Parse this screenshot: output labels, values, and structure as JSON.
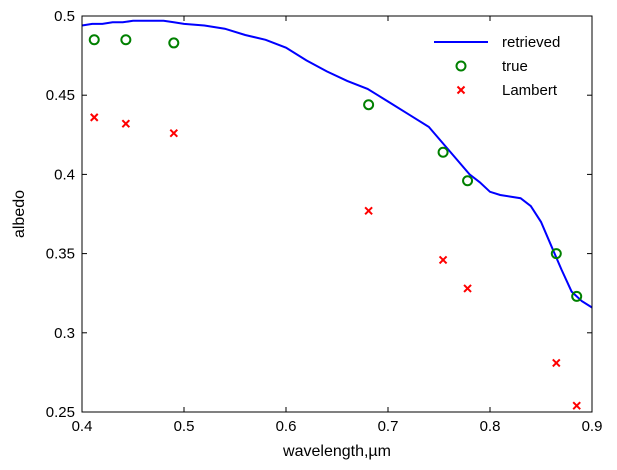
{
  "chart_data": {
    "type": "line",
    "xlabel": "wavelength,µm",
    "ylabel": "albedo",
    "xlim": [
      0.4,
      0.9
    ],
    "ylim": [
      0.25,
      0.5
    ],
    "xticks": [
      "0.4",
      "0.5",
      "0.6",
      "0.7",
      "0.8",
      "0.9"
    ],
    "yticks": [
      "0.25",
      "0.3",
      "0.35",
      "0.4",
      "0.45",
      "0.5"
    ],
    "grid": false,
    "legend_position": "top-right",
    "series": [
      {
        "name": "retrieved",
        "style": "line",
        "color": "#0000ff",
        "x": [
          0.4,
          0.41,
          0.42,
          0.43,
          0.44,
          0.45,
          0.46,
          0.47,
          0.48,
          0.49,
          0.5,
          0.52,
          0.54,
          0.56,
          0.58,
          0.6,
          0.62,
          0.64,
          0.66,
          0.68,
          0.69,
          0.7,
          0.72,
          0.74,
          0.76,
          0.78,
          0.79,
          0.8,
          0.81,
          0.82,
          0.83,
          0.84,
          0.85,
          0.86,
          0.87,
          0.88,
          0.89,
          0.9
        ],
        "y": [
          0.494,
          0.495,
          0.495,
          0.496,
          0.496,
          0.497,
          0.497,
          0.497,
          0.497,
          0.496,
          0.495,
          0.494,
          0.492,
          0.488,
          0.485,
          0.48,
          0.472,
          0.465,
          0.459,
          0.454,
          0.45,
          0.446,
          0.438,
          0.43,
          0.415,
          0.4,
          0.395,
          0.389,
          0.387,
          0.386,
          0.385,
          0.38,
          0.37,
          0.355,
          0.34,
          0.326,
          0.32,
          0.316
        ]
      },
      {
        "name": "true",
        "style": "markers-circle",
        "color": "#008000",
        "x": [
          0.412,
          0.443,
          0.49,
          0.681,
          0.754,
          0.778,
          0.865,
          0.885
        ],
        "y": [
          0.485,
          0.485,
          0.483,
          0.444,
          0.414,
          0.396,
          0.35,
          0.323
        ]
      },
      {
        "name": "Lambert",
        "style": "markers-x",
        "color": "#ff0000",
        "x": [
          0.412,
          0.443,
          0.49,
          0.681,
          0.754,
          0.778,
          0.865,
          0.885
        ],
        "y": [
          0.436,
          0.432,
          0.426,
          0.377,
          0.346,
          0.328,
          0.281,
          0.254
        ]
      }
    ]
  }
}
